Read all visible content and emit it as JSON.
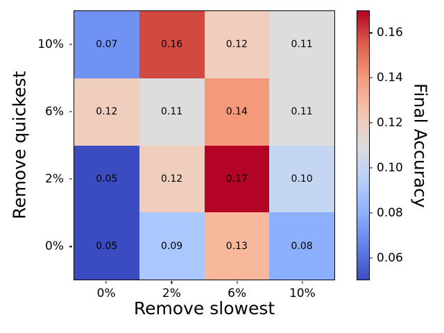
{
  "chart_data": {
    "type": "heatmap",
    "title": "",
    "xlabel": "Remove slowest",
    "ylabel": "Remove quickest",
    "colorbar_label": "Final Accuracy",
    "colormap": "coolwarm",
    "x_categories": [
      "0%",
      "2%",
      "6%",
      "10%"
    ],
    "y_categories": [
      "10%",
      "6%",
      "2%",
      "0%"
    ],
    "values": [
      [
        0.07,
        0.16,
        0.12,
        0.11
      ],
      [
        0.12,
        0.11,
        0.14,
        0.11
      ],
      [
        0.05,
        0.12,
        0.17,
        0.1
      ],
      [
        0.05,
        0.09,
        0.13,
        0.08
      ]
    ],
    "cell_labels": [
      [
        "0.07",
        "0.16",
        "0.12",
        "0.11"
      ],
      [
        "0.12",
        "0.11",
        "0.14",
        "0.11"
      ],
      [
        "0.05",
        "0.12",
        "0.17",
        "0.10"
      ],
      [
        "0.05",
        "0.09",
        "0.13",
        "0.08"
      ]
    ],
    "cell_colors": [
      [
        "#6f92f3",
        "#d24a3f",
        "#efcebd",
        "#dddddd"
      ],
      [
        "#efcebd",
        "#dddddd",
        "#f49a7b",
        "#dddddd"
      ],
      [
        "#3b4cc0",
        "#efcebd",
        "#b40426",
        "#c5d6f2"
      ],
      [
        "#3b4cc0",
        "#aac7fe",
        "#f7b89c",
        "#8db0fe"
      ]
    ],
    "vmin": 0.05,
    "vmax": 0.17,
    "colorbar_ticks": [
      0.16,
      0.14,
      0.12,
      0.1,
      0.08,
      0.06
    ],
    "colorbar_tick_labels": [
      "0.16",
      "0.14",
      "0.12",
      "0.10",
      "0.08",
      "0.06"
    ],
    "colorbar_gradient_bottom_to_top": [
      "#3b4cc0",
      "#6282ea",
      "#8db0fe",
      "#b8d0f9",
      "#dddddd",
      "#f5c4ad",
      "#f49a7b",
      "#de604d",
      "#b40426"
    ],
    "grid": false,
    "legend_position": "none",
    "annotation_text_color": "#000000",
    "axes_edge_color": "#000000"
  }
}
